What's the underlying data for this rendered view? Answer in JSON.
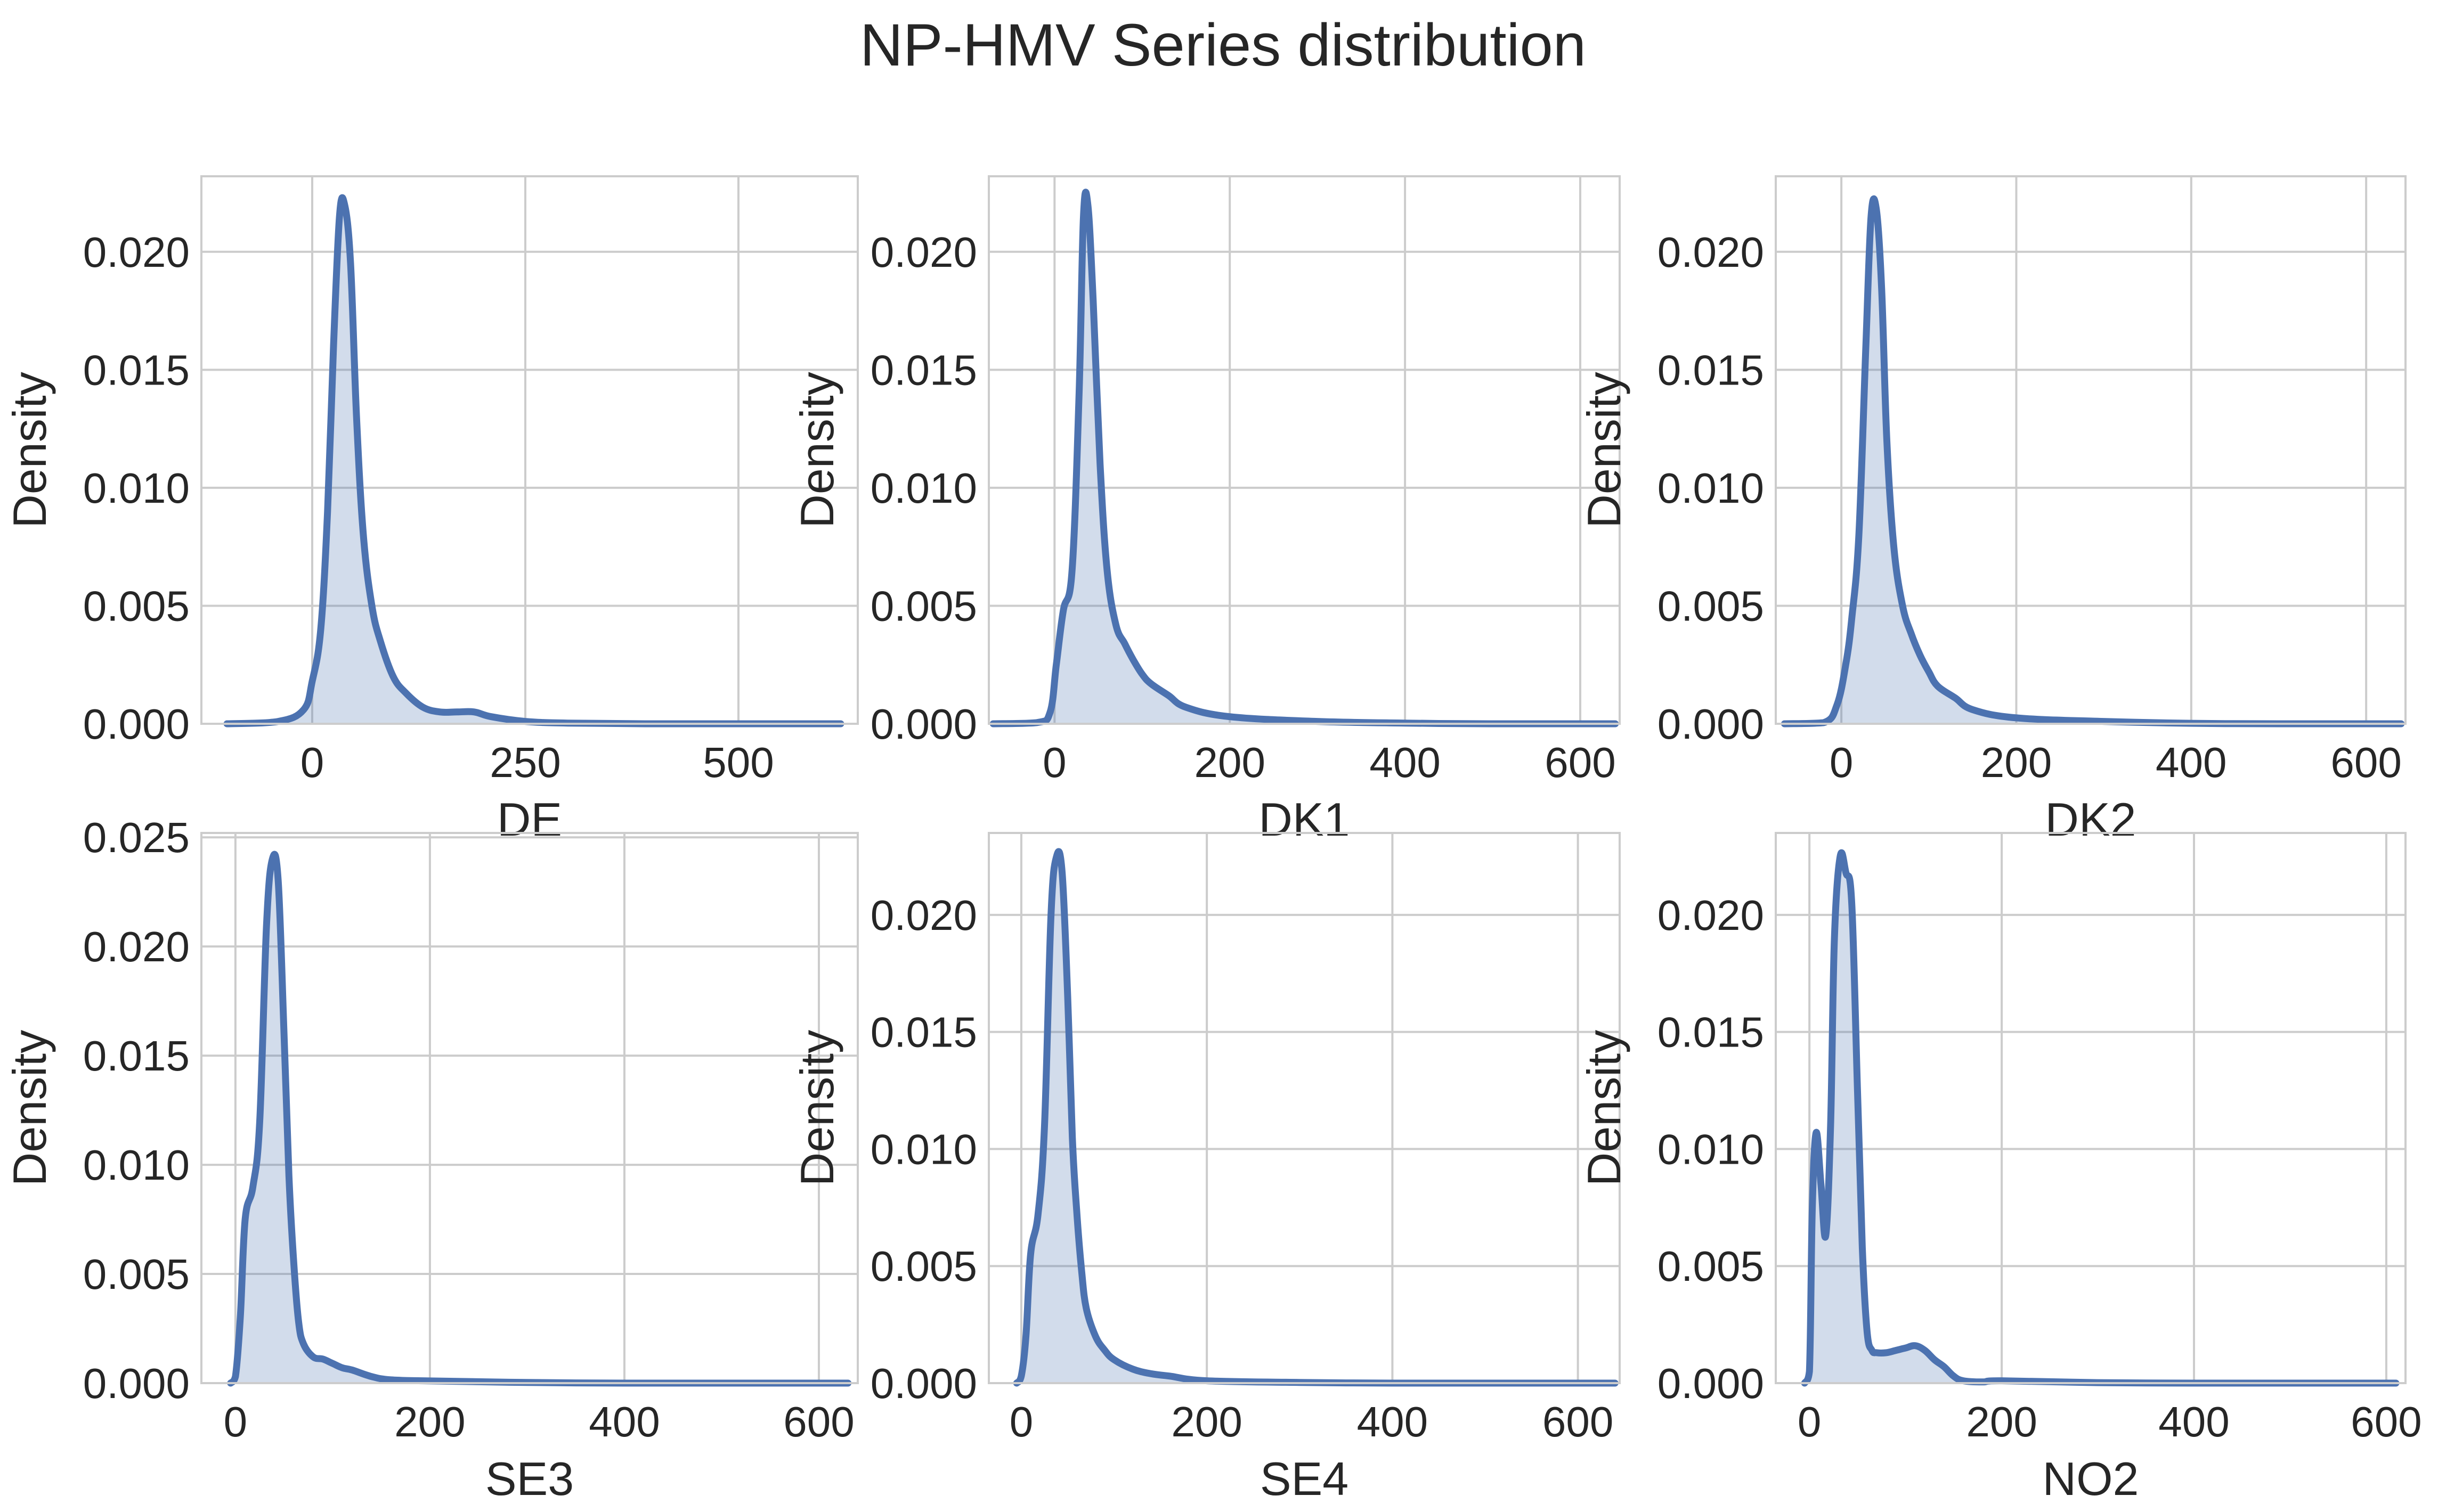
{
  "title": "NP-HMV Series distribution",
  "colors": {
    "line": "#4c72b0",
    "fill": "#4c72b0",
    "grid": "#cccccc",
    "spine": "#cccccc",
    "text": "#262626"
  },
  "chart_data": [
    {
      "type": "area",
      "xlabel": "DE",
      "ylabel": "Density",
      "xlim": [
        -130,
        640
      ],
      "ylim": [
        0,
        0.0232
      ],
      "xticks": [
        0,
        250,
        500
      ],
      "xtick_labels": [
        "0",
        "250",
        "500"
      ],
      "yticks": [
        0,
        0.005,
        0.01,
        0.015,
        0.02
      ],
      "ytick_labels": [
        "0.000",
        "0.005",
        "0.010",
        "0.015",
        "0.020"
      ],
      "x": [
        -100,
        -40,
        -10,
        0,
        10,
        18,
        25,
        32,
        38,
        45,
        52,
        60,
        70,
        80,
        95,
        110,
        130,
        150,
        170,
        190,
        210,
        250,
        300,
        400,
        500,
        620
      ],
      "y": [
        0,
        0.0001,
        0.0006,
        0.0018,
        0.004,
        0.009,
        0.016,
        0.0215,
        0.022,
        0.0195,
        0.013,
        0.008,
        0.005,
        0.0035,
        0.002,
        0.0013,
        0.0007,
        0.0005,
        0.0005,
        0.0005,
        0.0003,
        0.0001,
        3e-05,
        0,
        0,
        0
      ]
    },
    {
      "type": "area",
      "xlabel": "DK1",
      "ylabel": "Density",
      "xlim": [
        -75,
        645
      ],
      "ylim": [
        0,
        0.0232
      ],
      "xticks": [
        0,
        200,
        400,
        600
      ],
      "xtick_labels": [
        "0",
        "200",
        "400",
        "600"
      ],
      "yticks": [
        0,
        0.005,
        0.01,
        0.015,
        0.02
      ],
      "ytick_labels": [
        "0.000",
        "0.005",
        "0.010",
        "0.015",
        "0.020"
      ],
      "x": [
        -70,
        -20,
        -5,
        2,
        10,
        20,
        28,
        33,
        38,
        44,
        52,
        60,
        70,
        80,
        90,
        100,
        110,
        130,
        150,
        200,
        300,
        400,
        500,
        640
      ],
      "y": [
        0,
        5e-05,
        0.0005,
        0.0025,
        0.0048,
        0.0065,
        0.014,
        0.0215,
        0.022,
        0.018,
        0.011,
        0.0065,
        0.0042,
        0.0034,
        0.0027,
        0.0021,
        0.0017,
        0.0012,
        0.0007,
        0.0003,
        0.0001,
        3e-05,
        0,
        0
      ]
    },
    {
      "type": "area",
      "xlabel": "DK2",
      "ylabel": "Density",
      "xlim": [
        -75,
        645
      ],
      "ylim": [
        0,
        0.0232
      ],
      "xticks": [
        0,
        200,
        400,
        600
      ],
      "xtick_labels": [
        "0",
        "200",
        "400",
        "600"
      ],
      "yticks": [
        0,
        0.005,
        0.01,
        0.015,
        0.02
      ],
      "ytick_labels": [
        "0.000",
        "0.005",
        "0.010",
        "0.015",
        "0.020"
      ],
      "x": [
        -65,
        -20,
        -5,
        5,
        12,
        20,
        28,
        34,
        40,
        46,
        52,
        60,
        70,
        80,
        90,
        100,
        110,
        130,
        150,
        200,
        300,
        400,
        500,
        640
      ],
      "y": [
        0,
        5e-05,
        0.0008,
        0.0025,
        0.0045,
        0.008,
        0.016,
        0.0215,
        0.0218,
        0.0185,
        0.012,
        0.0075,
        0.005,
        0.0038,
        0.0029,
        0.0022,
        0.0016,
        0.0011,
        0.0006,
        0.00025,
        0.0001,
        2e-05,
        0,
        0
      ]
    },
    {
      "type": "area",
      "xlabel": "SE3",
      "ylabel": "Density",
      "xlim": [
        -35,
        640
      ],
      "ylim": [
        0,
        0.0252
      ],
      "xticks": [
        0,
        200,
        400,
        600
      ],
      "xtick_labels": [
        "0",
        "200",
        "400",
        "600"
      ],
      "yticks": [
        0,
        0.005,
        0.01,
        0.015,
        0.02,
        0.025
      ],
      "ytick_labels": [
        "0.000",
        "0.005",
        "0.010",
        "0.015",
        "0.020",
        "0.025"
      ],
      "x": [
        -5,
        0,
        5,
        10,
        18,
        25,
        32,
        38,
        44,
        50,
        55,
        60,
        65,
        70,
        80,
        90,
        100,
        110,
        120,
        140,
        160,
        200,
        300,
        400,
        500,
        630
      ],
      "y": [
        0,
        0.0003,
        0.003,
        0.0075,
        0.009,
        0.012,
        0.021,
        0.024,
        0.023,
        0.016,
        0.0095,
        0.0055,
        0.0028,
        0.0018,
        0.0012,
        0.0011,
        0.0009,
        0.0007,
        0.0006,
        0.0003,
        0.00015,
        0.0001,
        3e-05,
        0,
        0,
        0
      ]
    },
    {
      "type": "area",
      "xlabel": "SE4",
      "ylabel": "Density",
      "xlim": [
        -35,
        645
      ],
      "ylim": [
        0,
        0.0235
      ],
      "xticks": [
        0,
        200,
        400,
        600
      ],
      "xtick_labels": [
        "0",
        "200",
        "400",
        "600"
      ],
      "yticks": [
        0,
        0.005,
        0.01,
        0.015,
        0.02
      ],
      "ytick_labels": [
        "0.000",
        "0.005",
        "0.010",
        "0.015",
        "0.020"
      ],
      "x": [
        -5,
        0,
        5,
        10,
        18,
        25,
        32,
        38,
        44,
        50,
        55,
        60,
        65,
        70,
        80,
        90,
        100,
        120,
        140,
        160,
        200,
        300,
        400,
        500,
        640
      ],
      "y": [
        0,
        0.0003,
        0.002,
        0.0055,
        0.0072,
        0.011,
        0.02,
        0.0225,
        0.0218,
        0.0165,
        0.0105,
        0.0072,
        0.0048,
        0.0032,
        0.002,
        0.0014,
        0.001,
        0.0006,
        0.0004,
        0.0003,
        0.0001,
        3e-05,
        0,
        0,
        0
      ]
    },
    {
      "type": "area",
      "xlabel": "NO2",
      "ylabel": "Density",
      "xlim": [
        -35,
        620
      ],
      "ylim": [
        0,
        0.0235
      ],
      "xticks": [
        0,
        200,
        400,
        600
      ],
      "xtick_labels": [
        "0",
        "200",
        "400",
        "600"
      ],
      "yticks": [
        0,
        0.005,
        0.01,
        0.015,
        0.02
      ],
      "ytick_labels": [
        "0.000",
        "0.005",
        "0.010",
        "0.015",
        "0.020"
      ],
      "x": [
        -5,
        0,
        3,
        7,
        12,
        17,
        22,
        26,
        32,
        38,
        44,
        50,
        55,
        60,
        65,
        70,
        80,
        90,
        100,
        110,
        120,
        130,
        140,
        150,
        160,
        180,
        200,
        300,
        400,
        500,
        610
      ],
      "y": [
        0,
        0.0005,
        0.0075,
        0.0107,
        0.0085,
        0.0063,
        0.011,
        0.019,
        0.0225,
        0.0218,
        0.0205,
        0.0125,
        0.0058,
        0.0022,
        0.0014,
        0.0013,
        0.0013,
        0.0014,
        0.0015,
        0.0016,
        0.0014,
        0.001,
        0.0007,
        0.0003,
        0.0001,
        5e-05,
        0.0001,
        2e-05,
        0,
        0,
        0
      ]
    }
  ]
}
